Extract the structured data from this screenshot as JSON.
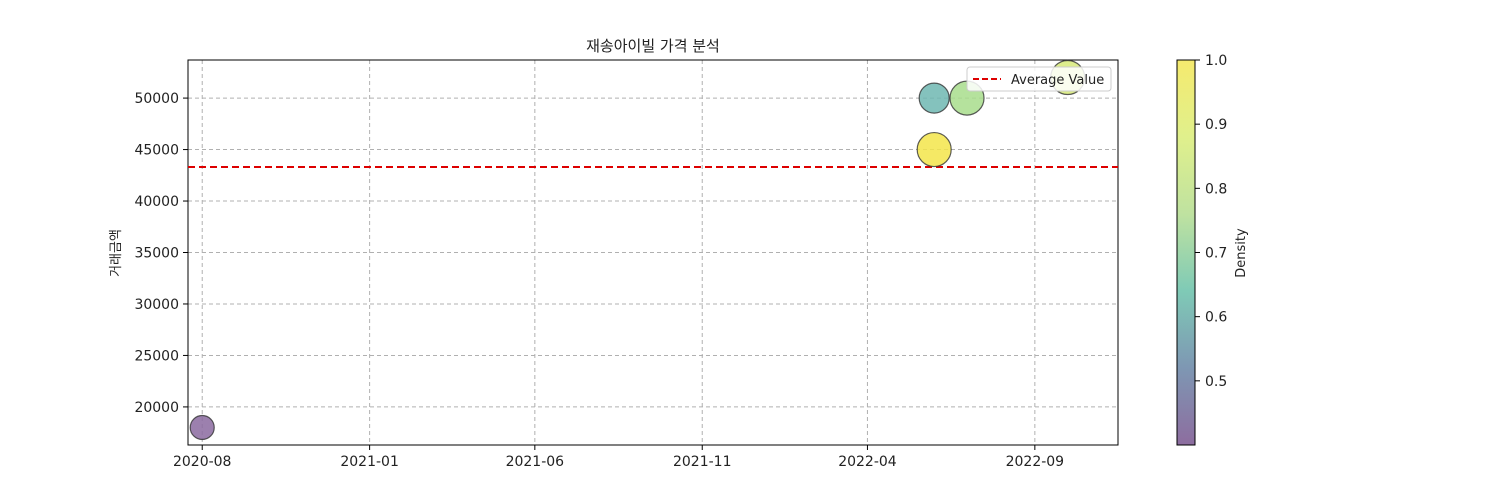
{
  "chart_data": {
    "type": "scatter",
    "title": "재송아이빌 가격 분석",
    "xlabel": "",
    "ylabel": "거래금액",
    "x_ticks": [
      "2020-08",
      "2021-01",
      "2021-06",
      "2021-11",
      "2022-04",
      "2022-09"
    ],
    "y_ticks": [
      20000,
      25000,
      30000,
      35000,
      40000,
      45000,
      50000
    ],
    "ylim": [
      16300,
      53700
    ],
    "xlim": [
      "2020-07-19",
      "2022-11-16"
    ],
    "grid": true,
    "points": [
      {
        "x": "2020-08-01",
        "y": 18000,
        "density": 0.4,
        "color": "#8b6aa0",
        "size": "small"
      },
      {
        "x": "2022-06-01",
        "y": 50000,
        "density": 0.75,
        "color": "#6fb7b2",
        "size": "medium"
      },
      {
        "x": "2022-06-01",
        "y": 45000,
        "density": 1.0,
        "color": "#f3e54a",
        "size": "large"
      },
      {
        "x": "2022-07-01",
        "y": 50000,
        "density": 0.85,
        "color": "#a8dd8c",
        "size": "large"
      },
      {
        "x": "2022-10-01",
        "y": 52000,
        "density": 0.9,
        "color": "#d7ea78",
        "size": "large"
      }
    ],
    "average_line": {
      "label": "Average Value",
      "y": 43300,
      "color": "#dd0000"
    },
    "legend": {
      "entries": [
        "Average Value"
      ],
      "placement": "top-right"
    },
    "colorbar": {
      "label": "Density",
      "ticks": [
        "0.5",
        "0.6",
        "0.7",
        "0.8",
        "0.9",
        "1.0"
      ],
      "range": [
        0.4,
        1.0
      ],
      "colors": [
        "#8d6d9f",
        "#7e97b3",
        "#7fcab6",
        "#bfe2a0",
        "#e0f08c",
        "#f5ea6e"
      ]
    }
  }
}
